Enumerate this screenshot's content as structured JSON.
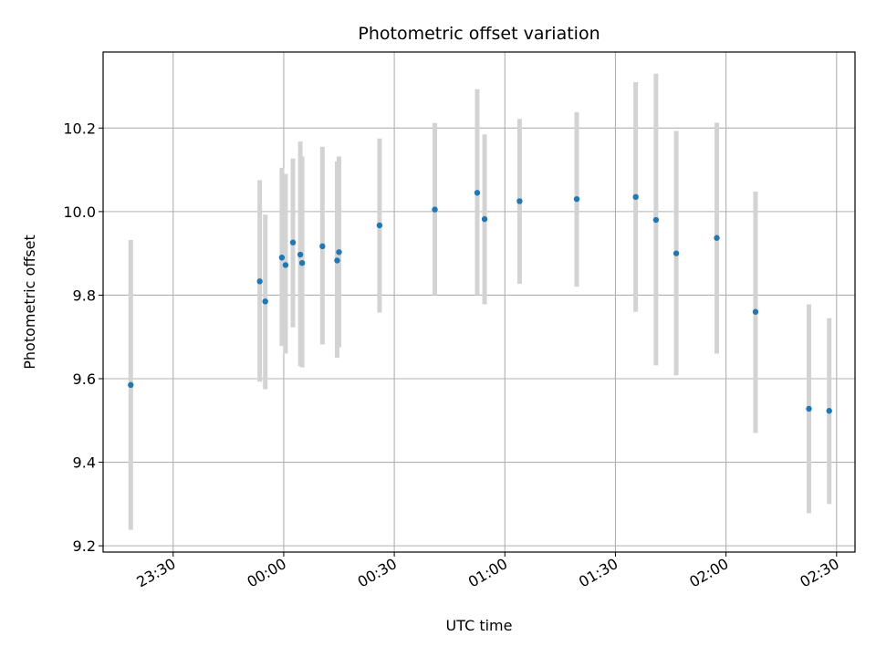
{
  "chart_data": {
    "type": "scatter",
    "title": "Photometric offset variation",
    "xlabel": "UTC time",
    "ylabel": "Photometric offset",
    "x_unit": "HH:MM UTC",
    "xlim": [
      "23:11",
      "02:35"
    ],
    "ylim": [
      9.185,
      10.382
    ],
    "x_ticks": [
      "23:30",
      "00:00",
      "00:30",
      "01:00",
      "01:30",
      "02:00",
      "02:30"
    ],
    "y_ticks": [
      "9.2",
      "9.4",
      "9.6",
      "9.8",
      "10.0",
      "10.2"
    ],
    "grid": true,
    "colors": {
      "marker": "#1f77b4",
      "errorbar": "#d3d3d3",
      "grid": "#b0b0b0"
    },
    "series": [
      {
        "points": [
          {
            "x": "23:18:30",
            "y": 9.585,
            "y_low": 9.238,
            "y_high": 9.932
          },
          {
            "x": "23:53:30",
            "y": 9.833,
            "y_low": 9.593,
            "y_high": 10.075
          },
          {
            "x": "23:55:00",
            "y": 9.785,
            "y_low": 9.575,
            "y_high": 9.993
          },
          {
            "x": "23:59:30",
            "y": 9.89,
            "y_low": 9.678,
            "y_high": 10.105
          },
          {
            "x": "00:00:30",
            "y": 9.872,
            "y_low": 9.66,
            "y_high": 10.09
          },
          {
            "x": "00:02:30",
            "y": 9.926,
            "y_low": 9.723,
            "y_high": 10.127
          },
          {
            "x": "00:04:30",
            "y": 9.897,
            "y_low": 9.63,
            "y_high": 10.168
          },
          {
            "x": "00:05:00",
            "y": 9.877,
            "y_low": 9.627,
            "y_high": 10.132
          },
          {
            "x": "00:10:30",
            "y": 9.917,
            "y_low": 9.682,
            "y_high": 10.155
          },
          {
            "x": "00:14:30",
            "y": 9.883,
            "y_low": 9.65,
            "y_high": 10.12
          },
          {
            "x": "00:15:00",
            "y": 9.903,
            "y_low": 9.675,
            "y_high": 10.132
          },
          {
            "x": "00:26:00",
            "y": 9.967,
            "y_low": 9.758,
            "y_high": 10.175
          },
          {
            "x": "00:41:00",
            "y": 10.005,
            "y_low": 9.8,
            "y_high": 10.212
          },
          {
            "x": "00:52:30",
            "y": 10.045,
            "y_low": 9.8,
            "y_high": 10.293
          },
          {
            "x": "00:54:30",
            "y": 9.982,
            "y_low": 9.778,
            "y_high": 10.185
          },
          {
            "x": "01:04:00",
            "y": 10.025,
            "y_low": 9.827,
            "y_high": 10.222
          },
          {
            "x": "01:19:30",
            "y": 10.03,
            "y_low": 9.82,
            "y_high": 10.238
          },
          {
            "x": "01:35:30",
            "y": 10.035,
            "y_low": 9.76,
            "y_high": 10.31
          },
          {
            "x": "01:41:00",
            "y": 9.98,
            "y_low": 9.632,
            "y_high": 10.33
          },
          {
            "x": "01:46:30",
            "y": 9.9,
            "y_low": 9.608,
            "y_high": 10.193
          },
          {
            "x": "01:57:30",
            "y": 9.937,
            "y_low": 9.66,
            "y_high": 10.213
          },
          {
            "x": "02:08:00",
            "y": 9.76,
            "y_low": 9.47,
            "y_high": 10.048
          },
          {
            "x": "02:22:30",
            "y": 9.528,
            "y_low": 9.278,
            "y_high": 9.778
          },
          {
            "x": "02:28:00",
            "y": 9.523,
            "y_low": 9.3,
            "y_high": 9.745
          }
        ]
      }
    ]
  }
}
